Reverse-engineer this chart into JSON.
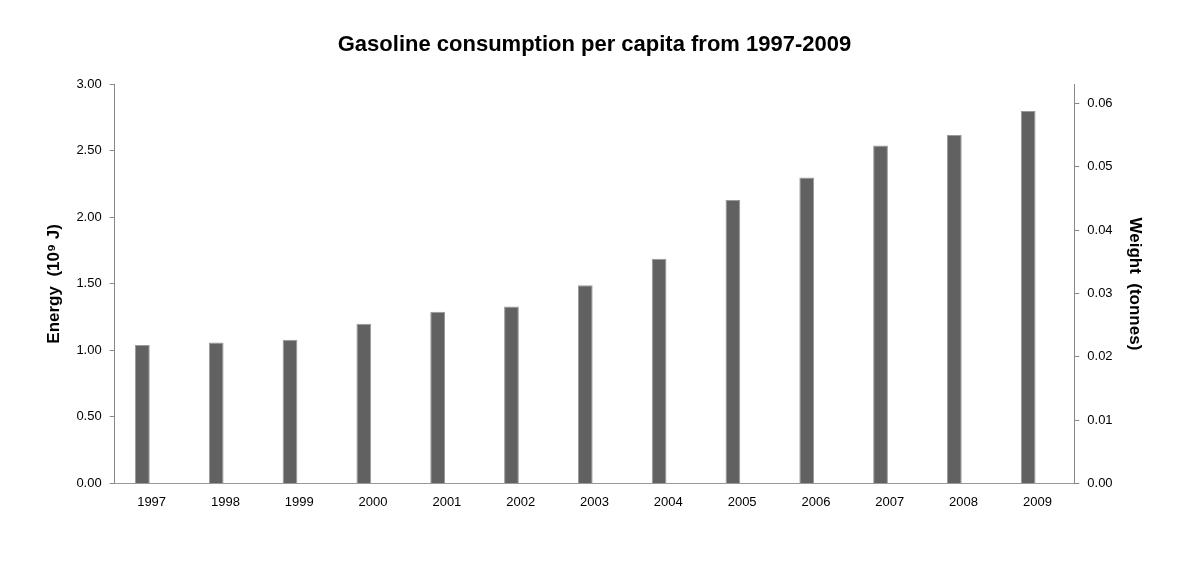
{
  "chart_data": {
    "type": "bar",
    "title": "Gasoline consumption per capita from 1997-2009",
    "categories": [
      "1997",
      "1998",
      "1999",
      "2000",
      "2001",
      "2002",
      "2003",
      "2004",
      "2005",
      "2006",
      "2007",
      "2008",
      "2009"
    ],
    "values": [
      1.04,
      1.06,
      1.08,
      1.2,
      1.29,
      1.33,
      1.49,
      1.69,
      2.13,
      2.3,
      2.54,
      2.62,
      2.8
    ],
    "color": "#616161",
    "ylabel": "Energy  (10⁹ J)",
    "y2label": "Weight  (tonnes)",
    "ylim": [
      0,
      3
    ],
    "yticks": [
      {
        "value": 0,
        "label": "0.00"
      },
      {
        "value": 0.5,
        "label": "0.50"
      },
      {
        "value": 1,
        "label": "1.00"
      },
      {
        "value": 1.5,
        "label": "1.50"
      },
      {
        "value": 2,
        "label": "2.00"
      },
      {
        "value": 2.5,
        "label": "2.50"
      },
      {
        "value": 3,
        "label": "3.00"
      }
    ],
    "y2lim": [
      0,
      0.063
    ],
    "y2ticks": [
      {
        "value": 0,
        "label": "0.00"
      },
      {
        "value": 0.01,
        "label": "0.01"
      },
      {
        "value": 0.02,
        "label": "0.02"
      },
      {
        "value": 0.03,
        "label": "0.03"
      },
      {
        "value": 0.04,
        "label": "0.04"
      },
      {
        "value": 0.05,
        "label": "0.05"
      },
      {
        "value": 0.06,
        "label": "0.06"
      }
    ],
    "grid": false,
    "legend": false
  }
}
